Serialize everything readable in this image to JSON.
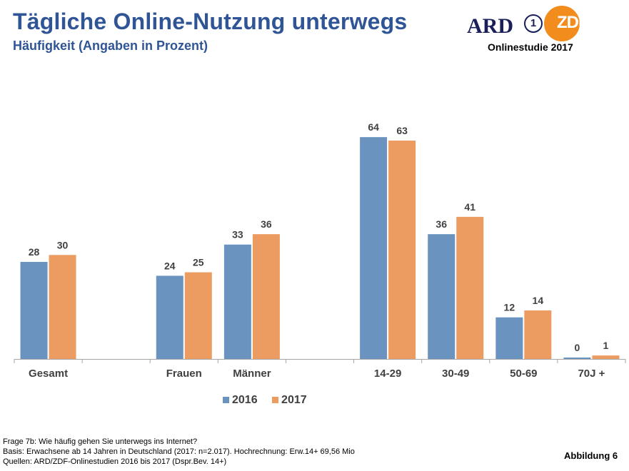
{
  "header": {
    "title": "Tägliche Online-Nutzung unterwegs",
    "subtitle": "Häufigkeit (Angaben in Prozent)",
    "logo_ard": "ARD",
    "logo_one": "1",
    "logo_zdf": "ZDF",
    "studie": "Onlinestudie 2017"
  },
  "colors": {
    "s2016": "#6a93c0",
    "s2017": "#ec9b61"
  },
  "chart_data": {
    "type": "bar",
    "categories": [
      "Gesamt",
      "",
      "Frauen",
      "Männer",
      "",
      "14-29",
      "30-49",
      "50-69",
      "70J +"
    ],
    "series": [
      {
        "name": "2016",
        "values": [
          28,
          null,
          24,
          33,
          null,
          64,
          36,
          12,
          0
        ]
      },
      {
        "name": "2017",
        "values": [
          30,
          null,
          25,
          36,
          null,
          63,
          41,
          14,
          1
        ]
      }
    ],
    "ylim": [
      0,
      70
    ],
    "legend": "bottom-center",
    "grid": false
  },
  "footer": {
    "frage": "Frage 7b: Wie häufig gehen Sie unterwegs ins Internet?",
    "basis": "Basis: Erwachsene ab 14 Jahren in Deutschland (2017: n=2.017). Hochrechnung: Erw.14+ 69,56 Mio",
    "quellen": "Quellen: ARD/ZDF-Onlinestudien 2016 bis 2017 (Dspr.Bev. 14+)",
    "abbildung": "Abbildung 6"
  }
}
